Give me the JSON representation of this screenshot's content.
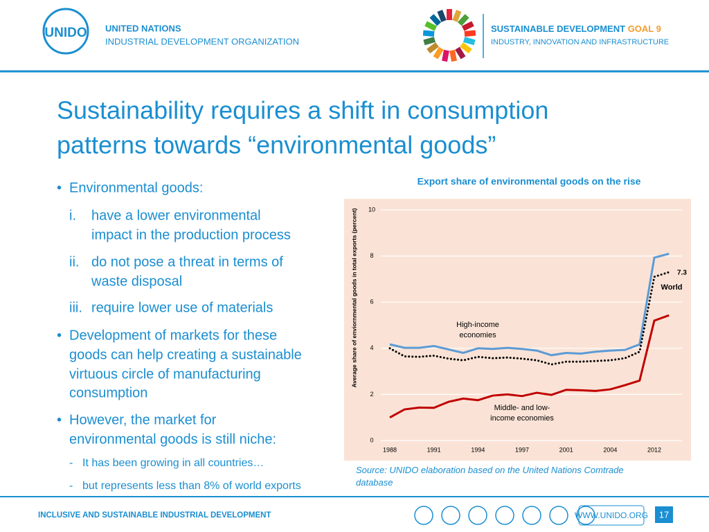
{
  "header": {
    "org_line1": "UNITED NATIONS",
    "org_line2": "INDUSTRIAL DEVELOPMENT ORGANIZATION",
    "logo_text": "UNIDO",
    "sdg_line1": "SUSTAINABLE DEVELOPMENT",
    "sdg_goal": "GOAL 9",
    "sdg_line2": "INDUSTRY, INNOVATION AND INFRASTRUCTURE"
  },
  "title_lines": [
    "Sustainability requires a shift in consumption",
    "patterns towards “environmental goods”"
  ],
  "bullets": [
    {
      "marker": "•",
      "level": 0,
      "lines": [
        "Environmental goods:"
      ]
    },
    {
      "marker": "i.",
      "level": 1,
      "lines": [
        "have a lower environmental",
        "impact in the production process"
      ]
    },
    {
      "marker": "ii.",
      "level": 1,
      "lines": [
        "do not pose a threat in terms of",
        "waste disposal"
      ]
    },
    {
      "marker": "iii.",
      "level": 1,
      "lines": [
        "require lower use of materials"
      ]
    },
    {
      "marker": "•",
      "level": 0,
      "lines": [
        "Development of markets for these",
        "goods can help creating a sustainable",
        "virtuous circle of manufacturing",
        "consumption"
      ]
    },
    {
      "marker": "•",
      "level": 0,
      "lines": [
        "However, the market for",
        "environmental goods is still niche:"
      ]
    },
    {
      "marker": "-",
      "level": 2,
      "lines": [
        "It has been growing in all countries…"
      ]
    },
    {
      "marker": "-",
      "level": 2,
      "lines": [
        "but represents less than 8% of world exports"
      ]
    }
  ],
  "chart_data": {
    "type": "line",
    "title": "Export share of environmental goods on the rise",
    "y_label": "Average share of enviornmental goods in total exports (percent)",
    "categories": [
      "1988",
      null,
      null,
      "1991",
      null,
      null,
      "1994",
      null,
      null,
      "1997",
      null,
      null,
      "2001",
      null,
      null,
      "2004",
      null,
      null,
      "2012",
      null
    ],
    "series": [
      {
        "name": "High-income economies",
        "color": "#5b9bd5",
        "style": "solid",
        "values": [
          4.17,
          4.02,
          4.02,
          4.1,
          3.95,
          3.8,
          4.0,
          3.97,
          4.02,
          3.97,
          3.9,
          3.7,
          3.8,
          3.77,
          3.85,
          3.9,
          3.93,
          4.17,
          7.93,
          8.1
        ]
      },
      {
        "name": "World",
        "color": "#000000",
        "style": "dotted",
        "values": [
          4.0,
          3.65,
          3.63,
          3.68,
          3.55,
          3.48,
          3.63,
          3.57,
          3.6,
          3.55,
          3.48,
          3.3,
          3.42,
          3.42,
          3.45,
          3.48,
          3.57,
          3.85,
          7.1,
          7.3
        ],
        "value_labels": [
          null,
          null,
          null,
          null,
          null,
          null,
          null,
          null,
          null,
          null,
          null,
          null,
          null,
          null,
          null,
          null,
          null,
          null,
          null,
          "7.3"
        ]
      },
      {
        "name": "Middle- and low-income economies",
        "color": "#c00000",
        "style": "solid",
        "values": [
          1.0,
          1.35,
          1.43,
          1.42,
          1.68,
          1.82,
          1.75,
          1.95,
          2.0,
          1.93,
          2.07,
          1.98,
          2.2,
          2.18,
          2.15,
          2.22,
          2.4,
          2.6,
          5.2,
          5.43
        ]
      }
    ],
    "ylim": [
      0,
      10
    ],
    "yticks": [
      0,
      2,
      4,
      6,
      8,
      10
    ],
    "grid": true,
    "source": "Source: UNIDO elaboration based on the United Nations Comtrade database"
  },
  "footer": {
    "tagline": "INCLUSIVE AND SUSTAINABLE INDUSTRIAL DEVELOPMENT",
    "url": "WWW.UNIDO.ORG",
    "page": "17"
  }
}
